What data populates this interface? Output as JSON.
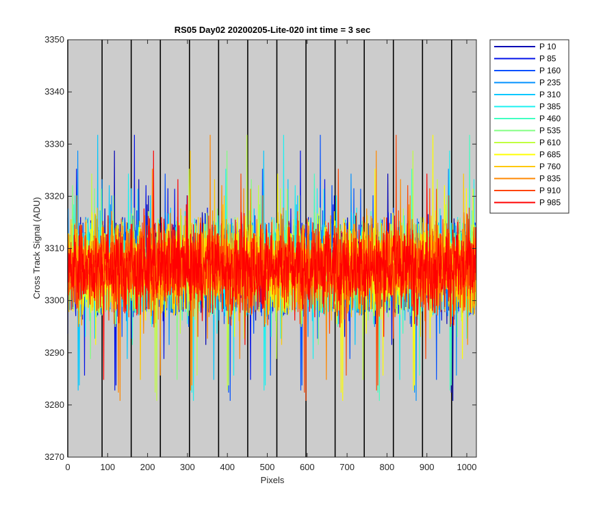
{
  "chart_data": {
    "type": "line",
    "title": "RS05 Day02 20200205-Lite-020 int time = 3 sec",
    "xlabel": "Pixels",
    "ylabel": "Cross Track Signal (ADU)",
    "xlim": [
      0,
      1024
    ],
    "ylim": [
      3270,
      3350
    ],
    "xticks": [
      0,
      100,
      200,
      300,
      400,
      500,
      600,
      700,
      800,
      900,
      1000
    ],
    "yticks": [
      3270,
      3280,
      3290,
      3300,
      3310,
      3320,
      3330,
      3340,
      3350
    ],
    "background": "#cccccc",
    "grid": false,
    "legend_position": "outside-top-right",
    "vertical_lines_x": [
      0,
      86,
      159,
      232,
      305,
      378,
      451,
      524,
      597,
      670,
      743,
      816,
      889,
      962
    ],
    "noise_band": {
      "center": 3306.5,
      "typical_range": [
        3290,
        3323
      ],
      "extreme_range": [
        3276,
        3341
      ]
    },
    "series": [
      {
        "name": "P 10",
        "color": "#0000b4"
      },
      {
        "name": "P 85",
        "color": "#0010e8"
      },
      {
        "name": "P 160",
        "color": "#0050ff"
      },
      {
        "name": "P 235",
        "color": "#0090ff"
      },
      {
        "name": "P 310",
        "color": "#00c8ff"
      },
      {
        "name": "P 385",
        "color": "#1af0f0"
      },
      {
        "name": "P 460",
        "color": "#40ffc0"
      },
      {
        "name": "P 535",
        "color": "#80ff80"
      },
      {
        "name": "P 610",
        "color": "#c0ff40"
      },
      {
        "name": "P 685",
        "color": "#ffff00"
      },
      {
        "name": "P 760",
        "color": "#ffc800"
      },
      {
        "name": "P 835",
        "color": "#ff8800"
      },
      {
        "name": "P 910",
        "color": "#ff4400"
      },
      {
        "name": "P 985",
        "color": "#ff0000"
      }
    ]
  }
}
